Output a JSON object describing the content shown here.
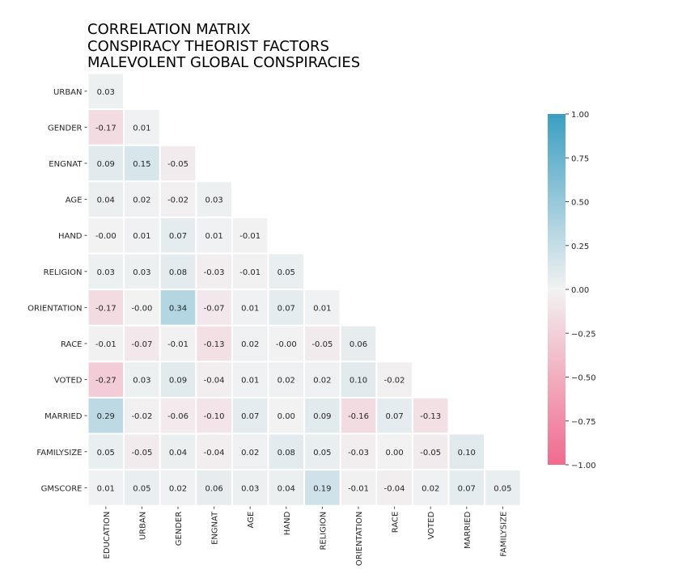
{
  "chart_data": {
    "type": "heatmap",
    "title_lines": [
      "CORRELATION MATRIX",
      "CONSPIRACY THEORIST FACTORS",
      "MALEVOLENT GLOBAL CONSPIRACIES"
    ],
    "row_labels": [
      "URBAN",
      "GENDER",
      "ENGNAT",
      "AGE",
      "HAND",
      "RELIGION",
      "ORIENTATION",
      "RACE",
      "VOTED",
      "MARRIED",
      "FAMILYSIZE",
      "GMSCORE"
    ],
    "col_labels": [
      "EDUCATION",
      "URBAN",
      "GENDER",
      "ENGNAT",
      "AGE",
      "HAND",
      "RELIGION",
      "ORIENTATION",
      "RACE",
      "VOTED",
      "MARRIED",
      "FAMILYSIZE"
    ],
    "value_labels": [
      [
        "0.03"
      ],
      [
        "-0.17",
        "0.01"
      ],
      [
        "0.09",
        "0.15",
        "-0.05"
      ],
      [
        "0.04",
        "0.02",
        "-0.02",
        "0.03"
      ],
      [
        "-0.00",
        "0.01",
        "0.07",
        "0.01",
        "-0.01"
      ],
      [
        "0.03",
        "0.03",
        "0.08",
        "-0.03",
        "-0.01",
        "0.05"
      ],
      [
        "-0.17",
        "-0.00",
        "0.34",
        "-0.07",
        "0.01",
        "0.07",
        "0.01"
      ],
      [
        "-0.01",
        "-0.07",
        "-0.01",
        "-0.13",
        "0.02",
        "-0.00",
        "-0.05",
        "0.06"
      ],
      [
        "-0.27",
        "0.03",
        "0.09",
        "-0.04",
        "0.01",
        "0.02",
        "0.02",
        "0.10",
        "-0.02"
      ],
      [
        "0.29",
        "-0.02",
        "-0.06",
        "-0.10",
        "0.07",
        "0.00",
        "0.09",
        "-0.16",
        "0.07",
        "-0.13"
      ],
      [
        "0.05",
        "-0.05",
        "0.04",
        "-0.04",
        "0.02",
        "0.08",
        "0.05",
        "-0.03",
        "0.00",
        "-0.05",
        "0.10"
      ],
      [
        "0.01",
        "0.05",
        "0.02",
        "0.06",
        "0.03",
        "0.04",
        "0.19",
        "-0.01",
        "-0.04",
        "0.02",
        "0.07",
        "0.05"
      ]
    ],
    "color_range": [
      -1.0,
      1.0
    ],
    "colorbar_ticks": [
      "1.00",
      "0.75",
      "0.50",
      "0.25",
      "0.00",
      "−0.25",
      "−0.50",
      "−0.75",
      "−1.00"
    ],
    "colors": {
      "positive": "#3a9fc2",
      "neutral": "#f2f2f2",
      "negative": "#f16a8d"
    },
    "grid": false
  }
}
